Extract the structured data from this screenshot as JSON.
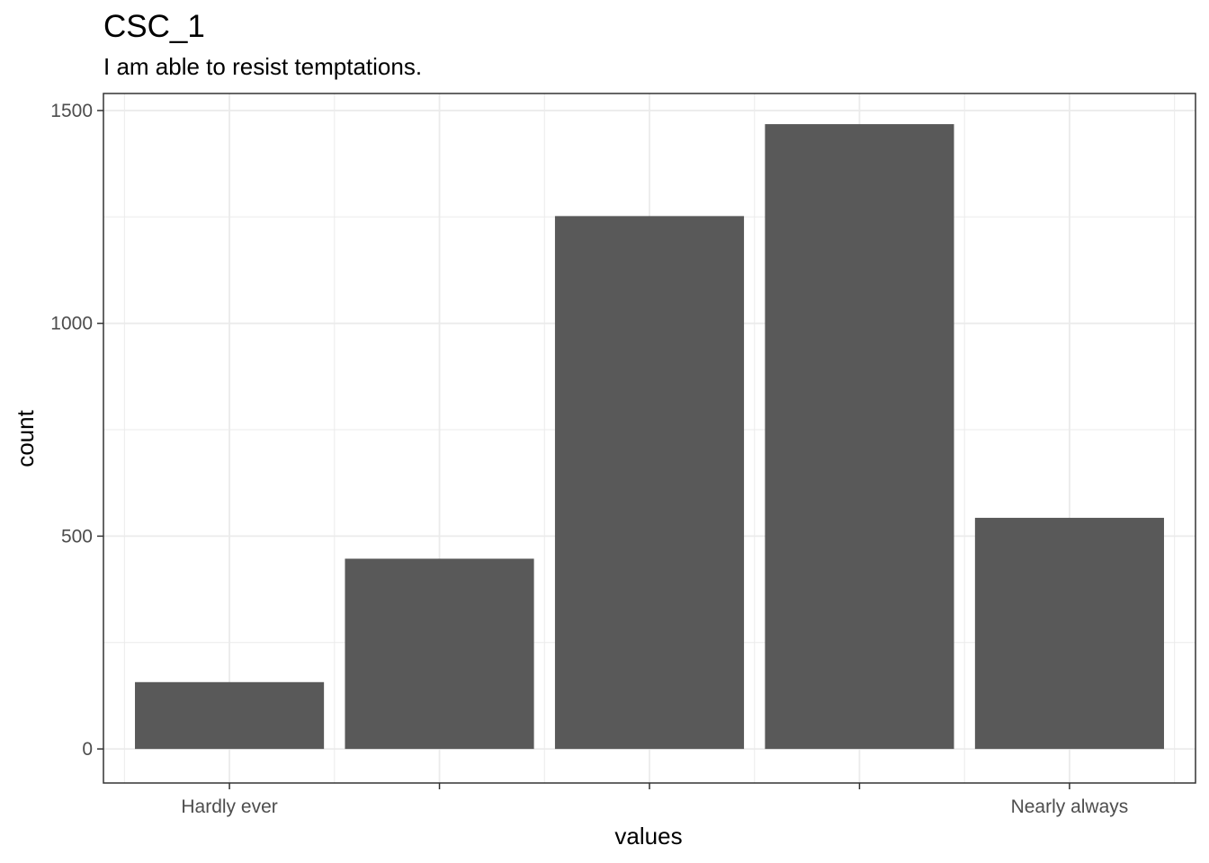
{
  "chart_data": {
    "type": "bar",
    "title": "CSC_1",
    "subtitle": "I am able to resist temptations.",
    "xlabel": "values",
    "ylabel": "count",
    "categories": [
      "Hardly ever",
      "",
      "",
      "",
      "Nearly always"
    ],
    "values": [
      157,
      447,
      1252,
      1468,
      543
    ],
    "ylim": [
      -80,
      1540
    ],
    "y_ticks": [
      0,
      500,
      1000,
      1500
    ],
    "grid": true,
    "bar_color": "#595959",
    "grid_color": "#ebebeb",
    "panel_border_color": "#333333"
  }
}
